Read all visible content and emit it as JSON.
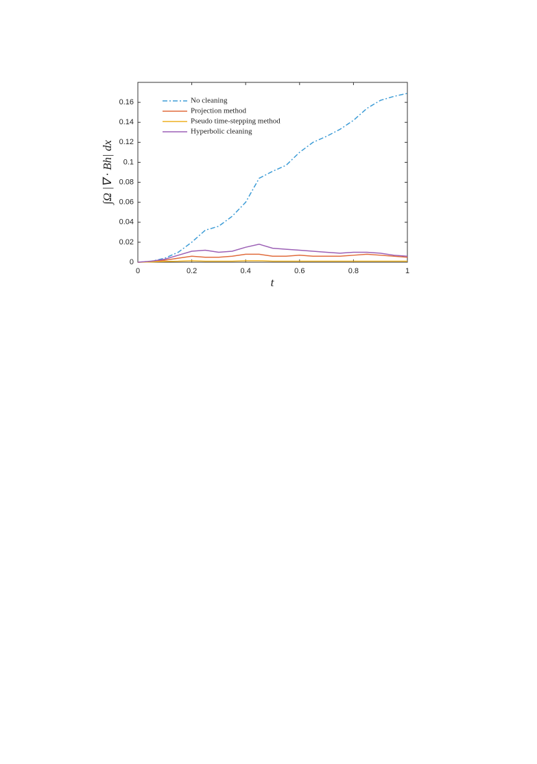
{
  "chart_data": {
    "type": "line",
    "xlabel": "t",
    "ylabel": "∫Ω |∇ · Bh| dx",
    "x": [
      0,
      0.05,
      0.1,
      0.15,
      0.2,
      0.25,
      0.3,
      0.35,
      0.4,
      0.45,
      0.5,
      0.55,
      0.6,
      0.65,
      0.7,
      0.75,
      0.8,
      0.85,
      0.9,
      0.95,
      1
    ],
    "series": [
      {
        "name": "No cleaning",
        "color": "#3b9bd6",
        "linestyle": "dashdot",
        "values": [
          0,
          0.001,
          0.004,
          0.01,
          0.02,
          0.032,
          0.036,
          0.046,
          0.06,
          0.084,
          0.091,
          0.097,
          0.11,
          0.12,
          0.126,
          0.133,
          0.142,
          0.154,
          0.162,
          0.166,
          0.169
        ]
      },
      {
        "name": "Projection method",
        "color": "#e06a3a",
        "linestyle": "solid",
        "values": [
          0,
          0.0005,
          0.002,
          0.004,
          0.006,
          0.005,
          0.005,
          0.006,
          0.008,
          0.008,
          0.006,
          0.006,
          0.007,
          0.006,
          0.006,
          0.006,
          0.007,
          0.008,
          0.007,
          0.006,
          0.005
        ]
      },
      {
        "name": "Pseudo time-stepping method",
        "color": "#edb120",
        "linestyle": "solid",
        "values": [
          0,
          0.0003,
          0.0008,
          0.001,
          0.0015,
          0.001,
          0.001,
          0.001,
          0.0015,
          0.0015,
          0.001,
          0.001,
          0.001,
          0.001,
          0.001,
          0.001,
          0.001,
          0.001,
          0.001,
          0.001,
          0.001
        ]
      },
      {
        "name": "Hyperbolic cleaning",
        "color": "#9b5fb5",
        "linestyle": "solid",
        "values": [
          0,
          0.001,
          0.003,
          0.007,
          0.011,
          0.012,
          0.01,
          0.011,
          0.015,
          0.018,
          0.014,
          0.013,
          0.012,
          0.011,
          0.01,
          0.009,
          0.01,
          0.01,
          0.009,
          0.007,
          0.006
        ]
      }
    ],
    "xlim": [
      0,
      1
    ],
    "xticks": [
      0,
      0.2,
      0.4,
      0.6,
      0.8,
      1
    ],
    "ylim": [
      0,
      0.18
    ],
    "yticks": [
      0,
      0.02,
      0.04,
      0.06,
      0.08,
      0.1,
      0.12,
      0.14,
      0.16
    ],
    "grid": false,
    "legend": "upper left"
  }
}
